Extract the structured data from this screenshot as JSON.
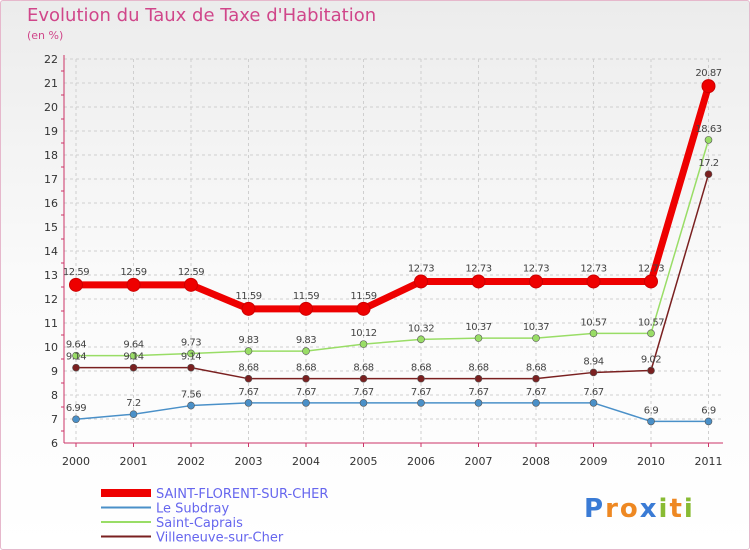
{
  "chart_data": {
    "type": "line",
    "title": "Evolution du Taux de Taxe d'Habitation",
    "subtitle": "(en %)",
    "xlabel": "",
    "ylabel": "",
    "ylim": [
      6,
      22
    ],
    "yticks": [
      "6",
      "7",
      "8",
      "9",
      "10",
      "11",
      "12",
      "13",
      "14",
      "15",
      "16",
      "17",
      "18",
      "19",
      "20",
      "21",
      "22"
    ],
    "categories": [
      "2000",
      "2001",
      "2002",
      "2003",
      "2004",
      "2005",
      "2006",
      "2007",
      "2008",
      "2009",
      "2010",
      "2011"
    ],
    "grid": true,
    "legend_position": "bottom-left",
    "series": [
      {
        "name": "SAINT-FLORENT-SUR-CHER",
        "color": "#ee0000",
        "values": [
          12.59,
          12.59,
          12.59,
          11.59,
          11.59,
          11.59,
          12.73,
          12.73,
          12.73,
          12.73,
          12.73,
          20.87
        ],
        "labels": [
          "12.59",
          "12.59",
          "12.59",
          "11.59",
          "11.59",
          "11.59",
          "12.73",
          "12.73",
          "12.73",
          "12.73",
          "12.73",
          "20.87"
        ]
      },
      {
        "name": "Le Subdray",
        "color": "#4a90c8",
        "values": [
          6.99,
          7.2,
          7.56,
          7.67,
          7.67,
          7.67,
          7.67,
          7.67,
          7.67,
          7.67,
          6.9,
          6.9
        ],
        "labels": [
          "6.99",
          "7.2",
          "7.56",
          "7.67",
          "7.67",
          "7.67",
          "7.67",
          "7.67",
          "7.67",
          "7.67",
          "6.9",
          "6.9"
        ]
      },
      {
        "name": "Saint-Caprais",
        "color": "#99dd66",
        "values": [
          9.64,
          9.64,
          9.73,
          9.83,
          9.83,
          10.12,
          10.32,
          10.37,
          10.37,
          10.57,
          10.57,
          18.63
        ],
        "labels": [
          "9.64",
          "9.64",
          "9.73",
          "9.83",
          "9.83",
          "10.12",
          "10.32",
          "10.37",
          "10.37",
          "10.57",
          "10.57",
          "18.63"
        ]
      },
      {
        "name": "Villeneuve-sur-Cher",
        "color": "#7a2020",
        "values": [
          9.14,
          9.14,
          9.14,
          8.68,
          8.68,
          8.68,
          8.68,
          8.68,
          8.68,
          8.94,
          9.02,
          17.2
        ],
        "labels": [
          "9.14",
          "9.14",
          "9.14",
          "8.68",
          "8.68",
          "8.68",
          "8.68",
          "8.68",
          "8.68",
          "8.94",
          "9.02",
          "17.2"
        ]
      }
    ]
  },
  "brand": {
    "letters": [
      "P",
      "r",
      "o",
      "x",
      "i",
      "t",
      "i"
    ],
    "colors": [
      "#3a7bd5",
      "#ee8822",
      "#ee8822",
      "#3a7bd5",
      "#88bb33",
      "#ee8822",
      "#88bb33"
    ]
  }
}
